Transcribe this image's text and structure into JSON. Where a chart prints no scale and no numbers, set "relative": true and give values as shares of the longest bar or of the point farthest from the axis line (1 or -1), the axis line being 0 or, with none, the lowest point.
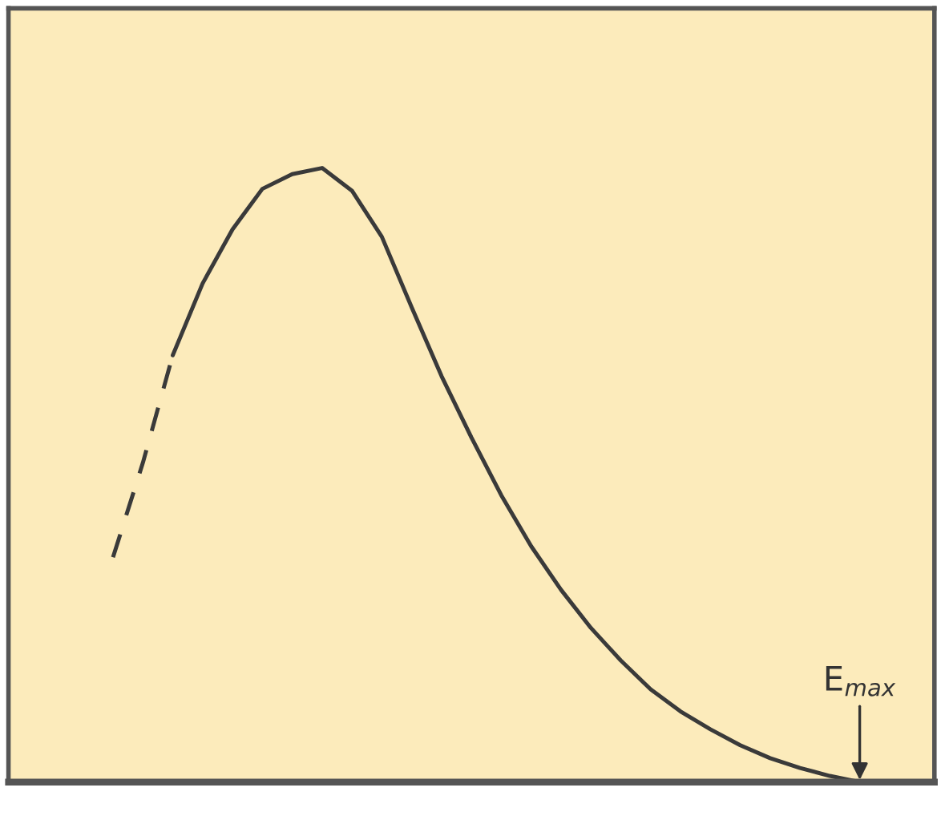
{
  "chart_data": {
    "type": "line",
    "relative": true,
    "categories": [
      null,
      null,
      null,
      null,
      null,
      null,
      null,
      null,
      null,
      null,
      null,
      null,
      null,
      null,
      null,
      null,
      null,
      null,
      null,
      null,
      null,
      null,
      null,
      null,
      null,
      null,
      null,
      null,
      null,
      null,
      null
    ],
    "series": [
      {
        "color": "#3a3a3a",
        "line_style": "dashed",
        "values": [
          null,
          null,
          null,
          0.366,
          0.52,
          0.695,
          null,
          null,
          null,
          null,
          null,
          null,
          null,
          null,
          null,
          null,
          null,
          null,
          null,
          null,
          null,
          null,
          null,
          null,
          null,
          null,
          null,
          null,
          null,
          null,
          null
        ]
      },
      {
        "color": "#3a3a3a",
        "line_style": "solid",
        "values": [
          null,
          null,
          null,
          null,
          null,
          0.695,
          0.812,
          0.9,
          0.966,
          0.99,
          1.0,
          0.963,
          0.888,
          0.773,
          0.661,
          0.561,
          0.467,
          0.384,
          0.313,
          0.251,
          0.198,
          0.151,
          0.115,
          0.086,
          0.06,
          0.039,
          0.023,
          0.01,
          0.0,
          null,
          null
        ]
      }
    ],
    "annotations": [
      "E$_{max}$"
    ]
  }
}
